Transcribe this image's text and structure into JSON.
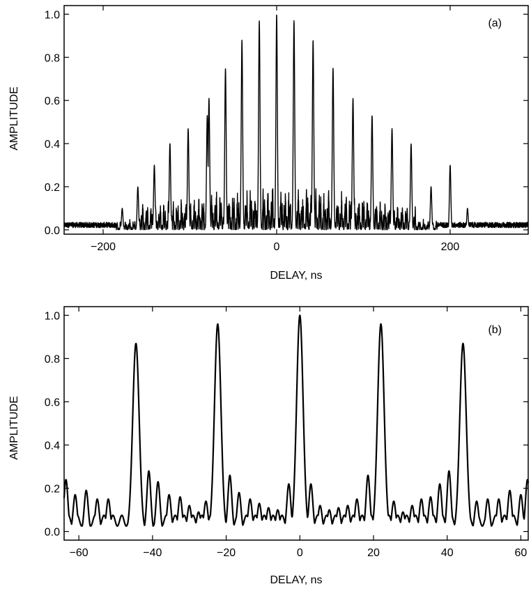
{
  "chart_data": [
    {
      "type": "line",
      "panel_label": "(a)",
      "xlabel": "DELAY, ns",
      "ylabel": "AMPLITUDE",
      "xlim": [
        -245,
        290
      ],
      "ylim": [
        -0.02,
        1.04
      ],
      "xticks": [
        -200,
        0,
        200
      ],
      "xtick_labels": [
        "−200",
        "0",
        "200"
      ],
      "yticks": [
        0.0,
        0.2,
        0.4,
        0.6,
        0.8,
        1.0
      ],
      "ytick_labels": [
        "0.0",
        "0.2",
        "0.4",
        "0.6",
        "0.8",
        "1.0"
      ],
      "grid": false,
      "line_color": "#000000",
      "peak_spacing_ns": 22,
      "peaks": [
        {
          "x": -178,
          "y": 0.1
        },
        {
          "x": -160,
          "y": 0.2
        },
        {
          "x": -141,
          "y": 0.3
        },
        {
          "x": -123,
          "y": 0.4
        },
        {
          "x": -102,
          "y": 0.47
        },
        {
          "x": -80,
          "y": 0.53
        },
        {
          "x": -78,
          "y": 0.61
        },
        {
          "x": -59,
          "y": 0.75
        },
        {
          "x": -40,
          "y": 0.88
        },
        {
          "x": -20,
          "y": 0.97
        },
        {
          "x": 0,
          "y": 1.0
        },
        {
          "x": 20,
          "y": 0.97
        },
        {
          "x": 42,
          "y": 0.88
        },
        {
          "x": 65,
          "y": 0.75
        },
        {
          "x": 88,
          "y": 0.61
        },
        {
          "x": 110,
          "y": 0.53
        },
        {
          "x": 133,
          "y": 0.47
        },
        {
          "x": 155,
          "y": 0.4
        },
        {
          "x": 178,
          "y": 0.2
        },
        {
          "x": 200,
          "y": 0.3
        },
        {
          "x": 220,
          "y": 0.1
        }
      ]
    },
    {
      "type": "line",
      "panel_label": "(b)",
      "xlabel": "DELAY, ns",
      "ylabel": "AMPLITUDE",
      "xlim": [
        -64,
        62
      ],
      "ylim": [
        -0.04,
        1.04
      ],
      "xticks": [
        -60,
        -40,
        -20,
        0,
        20,
        40,
        60
      ],
      "xtick_labels": [
        "−60",
        "−40",
        "−20",
        "0",
        "20",
        "40",
        "60"
      ],
      "yticks": [
        0.0,
        0.2,
        0.4,
        0.6,
        0.8,
        1.0
      ],
      "ytick_labels": [
        "0.0",
        "0.2",
        "0.4",
        "0.6",
        "0.8",
        "1.0"
      ],
      "grid": false,
      "line_color": "#000000",
      "peaks": [
        {
          "x": -44.5,
          "y": 0.87
        },
        {
          "x": -22.3,
          "y": 0.96
        },
        {
          "x": 0,
          "y": 1.0
        },
        {
          "x": 22.0,
          "y": 0.96
        },
        {
          "x": 44.3,
          "y": 0.87
        }
      ],
      "sidelobes": [
        {
          "x": -63.5,
          "y": 0.24
        },
        {
          "x": -61.0,
          "y": 0.17
        },
        {
          "x": -58.0,
          "y": 0.19
        },
        {
          "x": -55.0,
          "y": 0.15
        },
        {
          "x": -52.0,
          "y": 0.15
        },
        {
          "x": -41.0,
          "y": 0.28
        },
        {
          "x": -38.5,
          "y": 0.23
        },
        {
          "x": -35.5,
          "y": 0.17
        },
        {
          "x": -32.5,
          "y": 0.16
        },
        {
          "x": -30.0,
          "y": 0.12
        },
        {
          "x": -27.5,
          "y": 0.09
        },
        {
          "x": -25.5,
          "y": 0.14
        },
        {
          "x": -19.0,
          "y": 0.26
        },
        {
          "x": -16.5,
          "y": 0.18
        },
        {
          "x": -13.5,
          "y": 0.15
        },
        {
          "x": -11.0,
          "y": 0.13
        },
        {
          "x": -8.5,
          "y": 0.11
        },
        {
          "x": -6.0,
          "y": 0.1
        },
        {
          "x": -3.0,
          "y": 0.22
        },
        {
          "x": 3.0,
          "y": 0.22
        },
        {
          "x": 5.5,
          "y": 0.12
        },
        {
          "x": 8.0,
          "y": 0.1
        },
        {
          "x": 10.5,
          "y": 0.11
        },
        {
          "x": 13.0,
          "y": 0.12
        },
        {
          "x": 15.5,
          "y": 0.15
        },
        {
          "x": 18.5,
          "y": 0.26
        },
        {
          "x": 25.5,
          "y": 0.14
        },
        {
          "x": 28.0,
          "y": 0.09
        },
        {
          "x": 30.5,
          "y": 0.12
        },
        {
          "x": 33.0,
          "y": 0.15
        },
        {
          "x": 35.5,
          "y": 0.16
        },
        {
          "x": 38.0,
          "y": 0.22
        },
        {
          "x": 40.5,
          "y": 0.28
        },
        {
          "x": 48.0,
          "y": 0.14
        },
        {
          "x": 51.0,
          "y": 0.15
        },
        {
          "x": 54.0,
          "y": 0.15
        },
        {
          "x": 57.0,
          "y": 0.19
        },
        {
          "x": 60.0,
          "y": 0.17
        },
        {
          "x": 61.8,
          "y": 0.24
        }
      ]
    }
  ]
}
